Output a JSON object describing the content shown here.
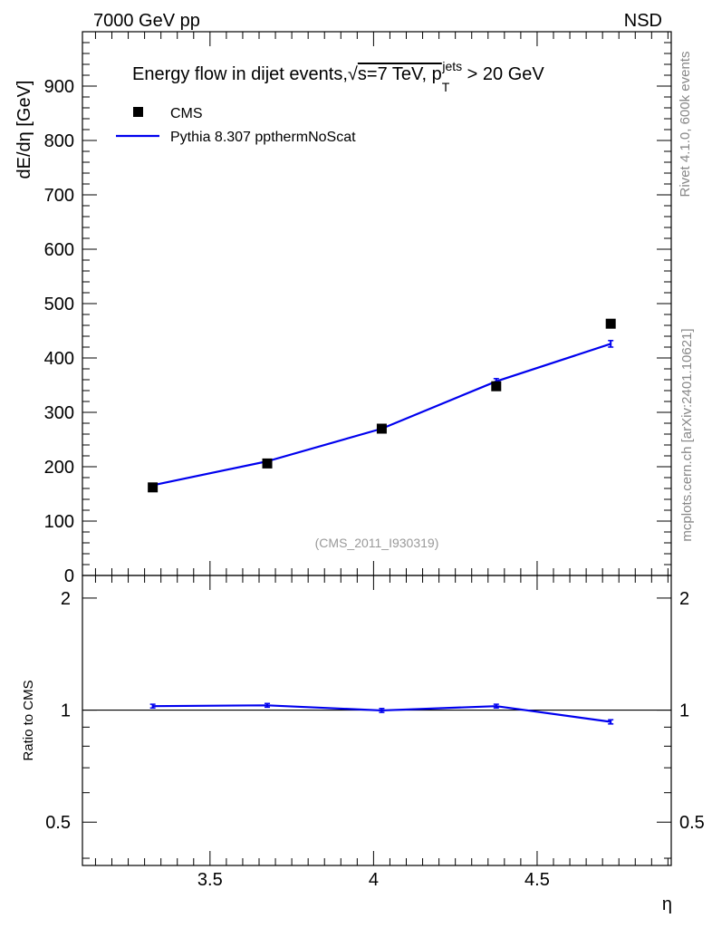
{
  "header": {
    "left": "7000 GeV pp",
    "right": "NSD"
  },
  "side_text": {
    "rivet": "Rivet 4.1.0,  600k events",
    "mcplots": "mcplots.cern.ch [arXiv:2401.10621]"
  },
  "watermark": "(CMS_2011_I930319)",
  "colors": {
    "data": "#000000",
    "mc": "#0000ee",
    "side_text": "#888888",
    "watermark": "#999999"
  },
  "chart_data": {
    "type": "scatter",
    "title": {
      "prefix": "Energy flow in dijet events,",
      "sqrt": "√",
      "s_expr": "s=7 TeV, p",
      "sub": "T",
      "sup": "jets",
      "suffix": " > 20 GeV"
    },
    "xlabel": "η",
    "ylabel": "dE/dη [GeV]",
    "ratio_ylabel": "Ratio to CMS",
    "xlim": [
      3.11,
      4.91
    ],
    "ylim": [
      0,
      1000
    ],
    "ratio_ylim": [
      0.3825,
      2.3
    ],
    "x_ticks": [
      3.5,
      4,
      4.5
    ],
    "x_tick_labels": [
      "3.5",
      "4",
      "4.5"
    ],
    "y_ticks": [
      0,
      100,
      200,
      300,
      400,
      500,
      600,
      700,
      800,
      900
    ],
    "y_tick_labels": [
      "0",
      "100",
      "200",
      "300",
      "400",
      "500",
      "600",
      "700",
      "800",
      "900"
    ],
    "ratio_ticks": [
      0.5,
      1,
      2
    ],
    "ratio_tick_labels": [
      "0.5",
      "1",
      "2"
    ],
    "legend": {
      "position": "top-left",
      "entries": [
        "CMS",
        "Pythia 8.307 ppthermNoScat"
      ]
    },
    "series": [
      {
        "name": "CMS",
        "style": "markers",
        "x": [
          3.325,
          3.675,
          4.025,
          4.375,
          4.725
        ],
        "y": [
          162,
          206,
          270,
          348,
          463
        ]
      },
      {
        "name": "Pythia 8.307 ppthermNoScat",
        "style": "line",
        "x": [
          3.325,
          3.675,
          4.025,
          4.375,
          4.725
        ],
        "y": [
          166,
          210,
          270,
          357,
          426
        ],
        "yerr": [
          3,
          3,
          3,
          5,
          6
        ]
      }
    ],
    "ratio": {
      "x": [
        3.325,
        3.675,
        4.025,
        4.375,
        4.725
      ],
      "y": [
        1.025,
        1.03,
        0.998,
        1.025,
        0.93
      ],
      "yerr": [
        0.012,
        0.012,
        0.012,
        0.012,
        0.012
      ]
    }
  }
}
